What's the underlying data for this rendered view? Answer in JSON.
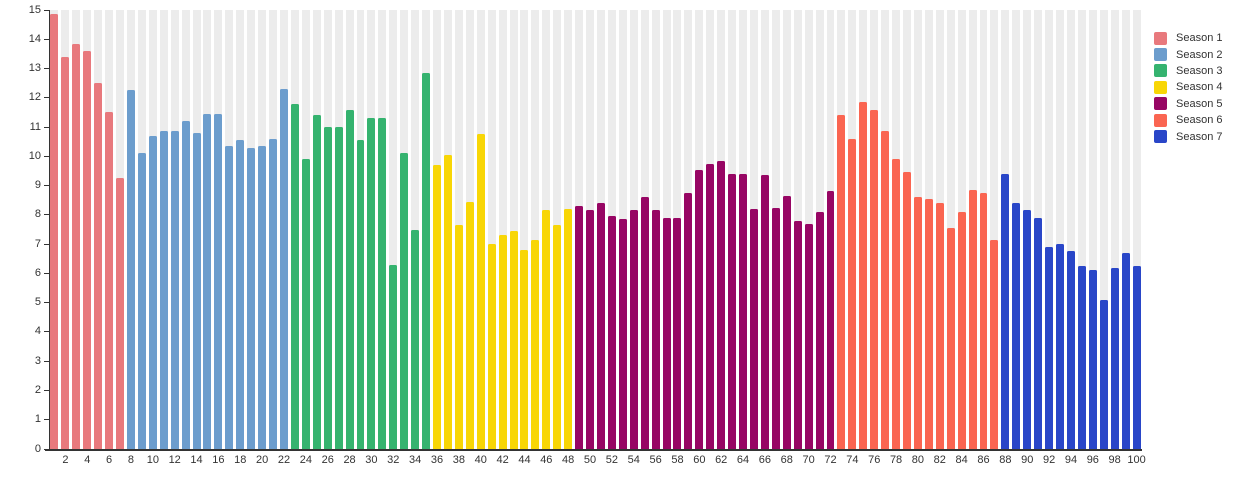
{
  "chart_data": {
    "type": "bar",
    "title": "",
    "xlabel": "",
    "ylabel": "",
    "ylim": [
      0,
      15
    ],
    "y_tick_step": 1,
    "x_tick_step": 2,
    "x_range": [
      1,
      100
    ],
    "grid": "per-bar vertical background bands",
    "legend_position": "right",
    "background_band_color": "#ececec",
    "axis_color": "#333333",
    "label_color": "#333333",
    "series": [
      {
        "name": "Season 1",
        "color": "#e8797d",
        "start_x": 1,
        "values": [
          14.85,
          13.4,
          13.85,
          13.6,
          12.5,
          11.5,
          9.25
        ]
      },
      {
        "name": "Season 2",
        "color": "#6c9dcd",
        "start_x": 8,
        "values": [
          12.25,
          10.1,
          10.7,
          10.85,
          10.85,
          11.2,
          10.8,
          11.45,
          11.45,
          10.35,
          10.55,
          10.3,
          10.35,
          10.6,
          12.3
        ]
      },
      {
        "name": "Season 3",
        "color": "#35b36f",
        "start_x": 23,
        "values": [
          11.8,
          9.9,
          11.4,
          11.0,
          11.0,
          11.6,
          10.55,
          11.3,
          11.3,
          6.3,
          10.1,
          7.5,
          12.85
        ]
      },
      {
        "name": "Season 4",
        "color": "#f8d606",
        "start_x": 36,
        "values": [
          9.7,
          10.05,
          7.65,
          8.45,
          10.75,
          7.0,
          7.3,
          7.45,
          6.8,
          7.15,
          8.15,
          7.65,
          8.2
        ]
      },
      {
        "name": "Season 5",
        "color": "#970664",
        "start_x": 49,
        "values": [
          8.3,
          8.15,
          8.4,
          7.95,
          7.85,
          8.15,
          8.6,
          8.15,
          7.9,
          7.9,
          8.75,
          9.55,
          9.75,
          9.85,
          9.4,
          9.4,
          8.2,
          9.35,
          8.25,
          8.65,
          7.8,
          7.7,
          8.1,
          8.8
        ]
      },
      {
        "name": "Season 6",
        "color": "#fa6551",
        "start_x": 73,
        "values": [
          11.4,
          10.6,
          11.85,
          11.6,
          10.85,
          9.9,
          9.45,
          8.6,
          8.55,
          8.4,
          7.55,
          8.1,
          8.85,
          8.75,
          7.15
        ]
      },
      {
        "name": "Season 7",
        "color": "#2946c8",
        "start_x": 88,
        "values": [
          9.4,
          8.4,
          8.15,
          7.9,
          6.9,
          7.0,
          6.75,
          6.25,
          6.1,
          5.1,
          6.2,
          6.7,
          6.25
        ]
      }
    ]
  }
}
